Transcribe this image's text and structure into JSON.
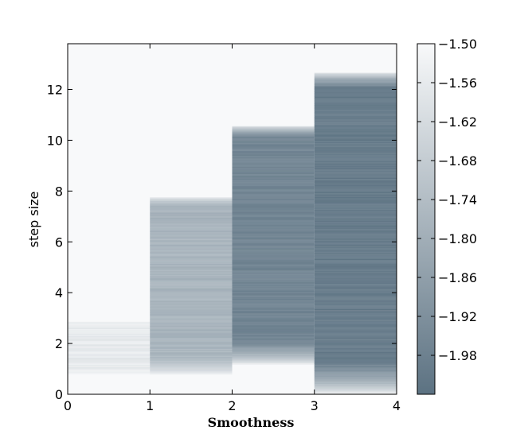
{
  "chart_data": {
    "type": "heatmap",
    "title": "",
    "xlabel": "Smoothness",
    "ylabel": "step size",
    "xlim": [
      0,
      4
    ],
    "ylim": [
      0,
      13.8
    ],
    "x_ticks": [
      0,
      1,
      2,
      3,
      4
    ],
    "y_ticks": [
      0,
      2,
      4,
      6,
      8,
      10,
      12
    ],
    "grid": false,
    "background_value": -1.5,
    "colorbar": {
      "min": -2.04,
      "max": -1.5,
      "ticks": [
        -1.5,
        -1.56,
        -1.62,
        -1.68,
        -1.74,
        -1.8,
        -1.86,
        -1.92,
        -1.98
      ],
      "tick_labels": [
        "−1.50",
        "−1.56",
        "−1.62",
        "−1.68",
        "−1.74",
        "−1.80",
        "−1.86",
        "−1.92",
        "−1.98"
      ],
      "color_low": "#5c7282",
      "color_high": "#f8f9fa"
    },
    "columns": [
      {
        "x0": 0,
        "x1": 1,
        "y_start": 0.8,
        "y_end": 2.9,
        "core_value": -1.56
      },
      {
        "x0": 1,
        "x1": 2,
        "y_start": 0.8,
        "y_end": 7.8,
        "core_value": -1.77
      },
      {
        "x0": 2,
        "x1": 3,
        "y_start": 1.2,
        "y_end": 10.6,
        "core_value": -1.96
      },
      {
        "x0": 3,
        "x1": 4,
        "y_start": 0.05,
        "y_end": 12.7,
        "core_value": -2.0
      }
    ]
  }
}
